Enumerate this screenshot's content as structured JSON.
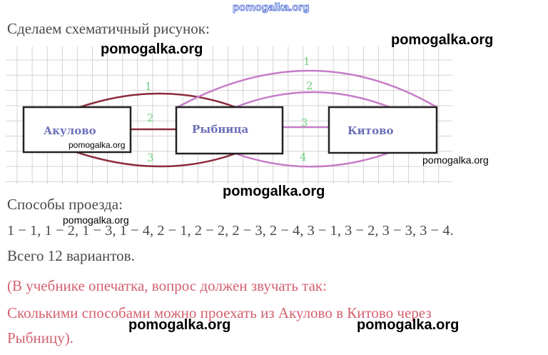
{
  "watermark": "pomogalka.org",
  "intro": "Сделаем схематичный рисунок:",
  "diagram": {
    "cities": [
      "Акулово",
      "Рыбница",
      "Китово"
    ],
    "roads_left": [
      "1",
      "2",
      "3"
    ],
    "roads_right": [
      "1",
      "2",
      "3",
      "4"
    ],
    "colors": {
      "left_roads": "#8b2a3c",
      "right_roads": "#c67cc8",
      "road_labels": "#6fd07f",
      "city_labels": "#6b6fb8"
    }
  },
  "ways_heading": "Способы проезда:",
  "ways": "1 − 1, 1 − 2, 1 − 3, 1 − 4, 2 − 1, 2 − 2, 2 − 3, 2 − 4, 3 − 1, 3 − 2, 3 − 3, 3 − 4.",
  "total": "Всего 12 вариантов.",
  "note": {
    "line1": "(В учебнике опечатка, вопрос должен звучать так:",
    "line2": "Сколькими способами можно проехать из Акулово в Китово через",
    "line3": "Рыбницу)."
  }
}
